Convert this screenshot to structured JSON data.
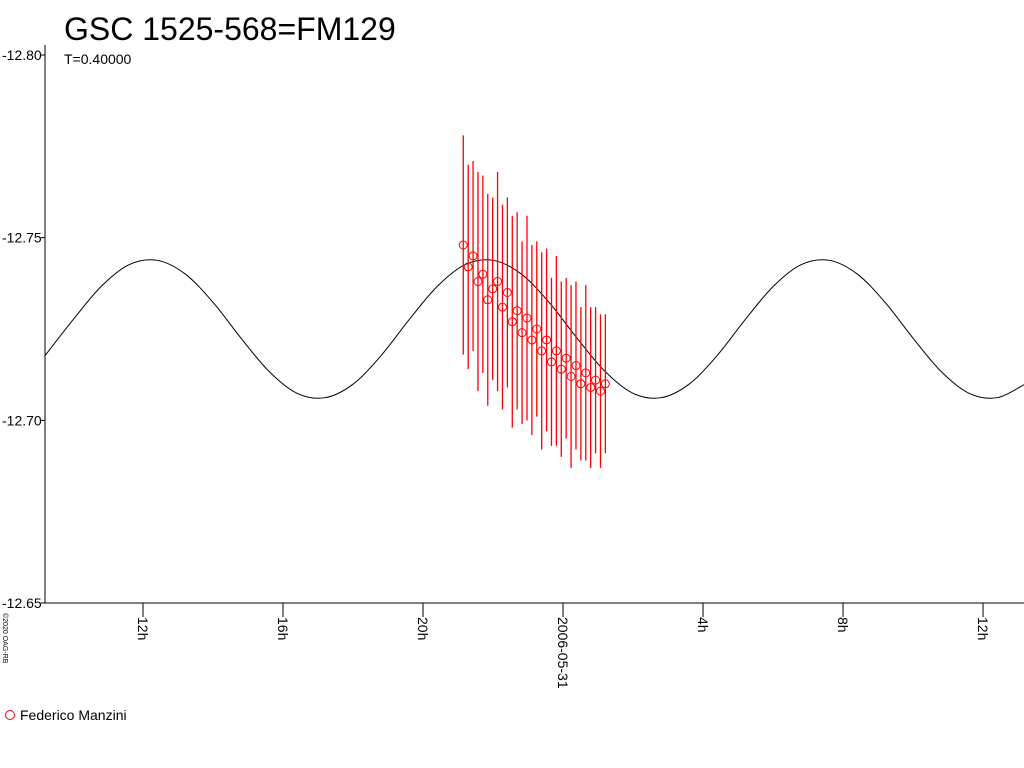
{
  "chart_data": {
    "type": "lightcurve",
    "title": "GSC 1525-568=FM129",
    "subtitle": "T=0.40000",
    "copyright": "©2020 OAG-RB",
    "xlim": [
      9.2,
      37.17
    ],
    "ylim": [
      -12.65,
      -12.8
    ],
    "xticks": [
      {
        "value": 12,
        "label": "12h"
      },
      {
        "value": 16,
        "label": "16h"
      },
      {
        "value": 20,
        "label": "20h"
      },
      {
        "value": 24,
        "label": "2006-05-31"
      },
      {
        "value": 28,
        "label": "4h"
      },
      {
        "value": 32,
        "label": "8h"
      },
      {
        "value": 36,
        "label": "12h"
      }
    ],
    "yticks": [
      {
        "value": -12.8,
        "label": "-12.80"
      },
      -12.75,
      {
        "value": -12.7,
        "label": "-12.70"
      },
      -12.65
    ],
    "model": {
      "color": "#000000",
      "x": [
        9.2,
        10.0,
        10.8,
        11.6,
        12.4,
        13.2,
        14.0,
        14.8,
        15.6,
        16.4,
        17.2,
        18.0,
        18.8,
        19.6,
        20.4,
        21.2,
        22.0,
        22.8,
        23.6,
        24.4,
        25.2,
        26.0,
        26.8,
        27.6,
        28.4,
        29.2,
        30.0,
        30.8,
        31.6,
        32.4,
        33.2,
        34.0,
        34.8,
        35.6,
        36.4,
        37.2
      ],
      "values": [
        -12.7177,
        -12.7275,
        -12.7366,
        -12.7426,
        -12.7438,
        -12.7401,
        -12.7323,
        -12.7225,
        -12.7134,
        -12.7074,
        -12.7062,
        -12.7099,
        -12.7177,
        -12.7275,
        -12.7366,
        -12.7426,
        -12.7438,
        -12.7401,
        -12.7323,
        -12.7225,
        -12.7134,
        -12.7074,
        -12.7062,
        -12.7099,
        -12.7177,
        -12.7275,
        -12.7366,
        -12.7426,
        -12.7438,
        -12.7401,
        -12.7323,
        -12.7225,
        -12.7134,
        -12.7074,
        -12.7062,
        -12.7099
      ]
    },
    "series": [
      {
        "name": "Federico Manzini",
        "color": "#ff0000",
        "x": [
          21.15,
          21.29,
          21.43,
          21.57,
          21.71,
          21.85,
          21.99,
          22.13,
          22.27,
          22.41,
          22.55,
          22.69,
          22.83,
          22.97,
          23.11,
          23.25,
          23.39,
          23.53,
          23.67,
          23.81,
          23.95,
          24.09,
          24.23,
          24.37,
          24.51,
          24.65,
          24.79,
          24.93,
          25.07,
          25.21
        ],
        "values": [
          -12.748,
          -12.742,
          -12.745,
          -12.738,
          -12.74,
          -12.733,
          -12.736,
          -12.738,
          -12.731,
          -12.735,
          -12.727,
          -12.73,
          -12.724,
          -12.728,
          -12.722,
          -12.725,
          -12.719,
          -12.722,
          -12.716,
          -12.719,
          -12.714,
          -12.717,
          -12.712,
          -12.715,
          -12.71,
          -12.713,
          -12.709,
          -12.711,
          -12.708,
          -12.71
        ],
        "errors": [
          0.03,
          0.028,
          0.026,
          0.03,
          0.027,
          0.029,
          0.025,
          0.03,
          0.028,
          0.026,
          0.029,
          0.027,
          0.025,
          0.028,
          0.026,
          0.024,
          0.027,
          0.025,
          0.023,
          0.026,
          0.024,
          0.022,
          0.025,
          0.023,
          0.021,
          0.024,
          0.022,
          0.02,
          0.021,
          0.019
        ]
      }
    ]
  }
}
